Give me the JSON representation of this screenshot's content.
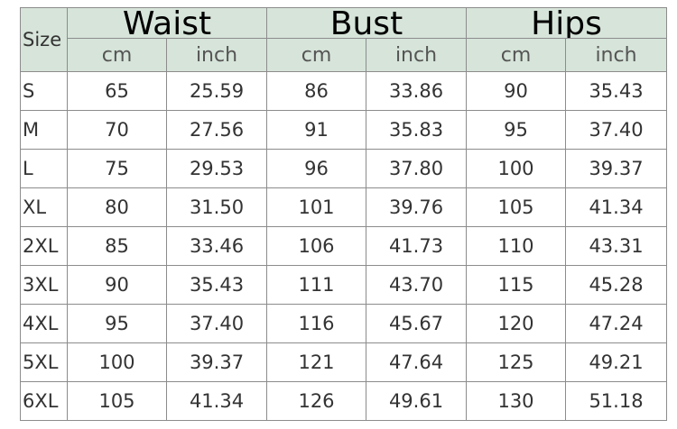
{
  "header": {
    "size_label": "Size",
    "groups": [
      "Waist",
      "Bust",
      "Hips"
    ],
    "units": [
      "cm",
      "inch",
      "cm",
      "inch",
      "cm",
      "inch"
    ]
  },
  "rows": [
    [
      "S",
      "65",
      "25.59",
      "86",
      "33.86",
      "90",
      "35.43"
    ],
    [
      "M",
      "70",
      "27.56",
      "91",
      "35.83",
      "95",
      "37.40"
    ],
    [
      "L",
      "75",
      "29.53",
      "96",
      "37.80",
      "100",
      "39.37"
    ],
    [
      "XL",
      "80",
      "31.50",
      "101",
      "39.76",
      "105",
      "41.34"
    ],
    [
      "2XL",
      "85",
      "33.46",
      "106",
      "41.73",
      "110",
      "43.31"
    ],
    [
      "3XL",
      "90",
      "35.43",
      "111",
      "43.70",
      "115",
      "45.28"
    ],
    [
      "4XL",
      "95",
      "37.40",
      "116",
      "45.67",
      "120",
      "47.24"
    ],
    [
      "5XL",
      "100",
      "39.37",
      "121",
      "47.64",
      "125",
      "49.21"
    ],
    [
      "6XL",
      "105",
      "41.34",
      "126",
      "49.61",
      "130",
      "51.18"
    ]
  ]
}
